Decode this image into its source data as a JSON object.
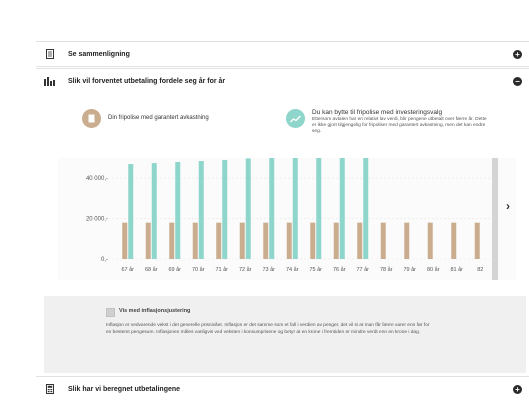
{
  "sections": {
    "comparison": {
      "title": "Se sammenligning",
      "icon": "document-icon",
      "toggle": "+"
    },
    "distribution": {
      "title": "Slik vil forventet utbetaling fordele seg år for år",
      "icon": "bar-chart-icon",
      "toggle": "−"
    },
    "calculation": {
      "title": "Slik har vi beregnet utbetalingene",
      "icon": "calculator-icon",
      "toggle": "+"
    }
  },
  "legend": {
    "series1": {
      "label": "Din fripolise med garantert avkastning",
      "color": "#c9ad8e",
      "icon": "document-icon"
    },
    "series2": {
      "label": "Du kan bytte til fripolise med investeringsvalg",
      "description": "Ettersom avtalen har en relativt lav verdi, blir pengene utbetalt over færre år. Dette er ikke gjort tilgjengelig for fripoliser med garantert avkastning, men det kan endre seg.",
      "color": "#8ed5cb",
      "icon": "trend-up-icon"
    }
  },
  "chart_data": {
    "type": "bar",
    "categories": [
      "67 år",
      "68 år",
      "69 år",
      "70 år",
      "71 år",
      "72 år",
      "73 år",
      "74 år",
      "75 år",
      "76 år",
      "77 år",
      "78 år",
      "79 år",
      "80 år",
      "81 år",
      "82"
    ],
    "y_tick_labels": [
      "0,-",
      "20 000,-",
      "40 000,-"
    ],
    "y_ticks": [
      0,
      20000,
      40000
    ],
    "ylim": [
      0,
      50000
    ],
    "series": [
      {
        "name": "Din fripolise med garantert avkastning",
        "color": "#c9ad8e",
        "values": [
          18000,
          18000,
          18000,
          18000,
          18000,
          18000,
          18000,
          18000,
          18000,
          18000,
          18000,
          18000,
          18000,
          18000,
          18000,
          18000
        ]
      },
      {
        "name": "Du kan bytte til fripolise med investeringsvalg",
        "color": "#8ed5cb",
        "values": [
          47000,
          47500,
          48000,
          48500,
          49000,
          49800,
          50500,
          51200,
          52000,
          53000,
          54000,
          null,
          null,
          null,
          null,
          null
        ]
      }
    ],
    "grid": true
  },
  "info": {
    "checkbox_label": "Vis med inflasjonsjustering",
    "checked": false,
    "text": "Inflasjon er vedvarende vekst i det generelle prisnivået. Inflasjon er det samme som et fall i verdien av penger, det vil si at man får færre varer enn før for en bestemt pengesum. Inflasjonen måles vanligvis ved veksten i konsumprisene og betyr at en krone i fremtiden er mindre verdt enn en krone i dag."
  },
  "navigation": {
    "next_label": "›"
  }
}
